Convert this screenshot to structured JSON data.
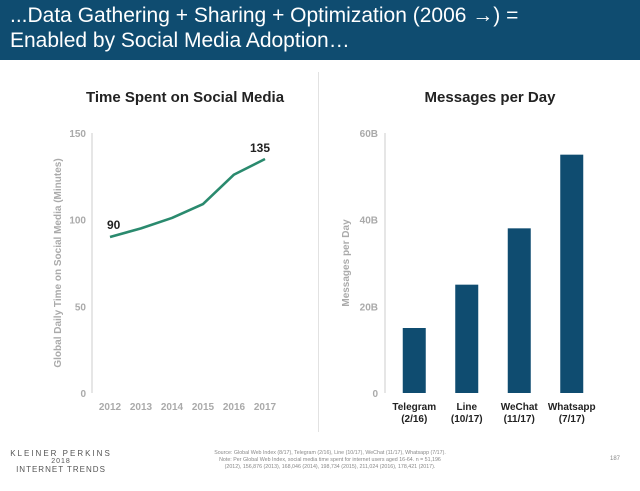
{
  "header": {
    "title_line1": "...Data Gathering + Sharing + Optimization (2006 →) =",
    "title_line2": "Enabled by Social Media Adoption…",
    "background": "#0f4c70"
  },
  "chart_data": [
    {
      "type": "line",
      "title": "Time Spent on Social Media",
      "ylabel": "Global Daily Time on Social Media (Minutes)",
      "xlabel": "",
      "x": [
        "2012",
        "2013",
        "2014",
        "2015",
        "2016",
        "2017"
      ],
      "series": [
        {
          "values": [
            90,
            95,
            101,
            109,
            126,
            135
          ],
          "color": "#2a8a6e"
        }
      ],
      "data_labels": [
        {
          "index": 0,
          "text": "90"
        },
        {
          "index": 5,
          "text": "135"
        }
      ],
      "yticks": [
        "0",
        "50",
        "100",
        "150"
      ],
      "ylim": [
        0,
        150
      ],
      "grid": false
    },
    {
      "type": "bar",
      "title": "Messages per Day",
      "ylabel": "Messages per Day",
      "xlabel": "",
      "categories": [
        {
          "name": "Telegram",
          "date": "(2/16)"
        },
        {
          "name": "Line",
          "date": "(10/17)"
        },
        {
          "name": "WeChat",
          "date": "(11/17)"
        },
        {
          "name": "Whatsapp",
          "date": "(7/17)"
        }
      ],
      "values": [
        15,
        25,
        38,
        55
      ],
      "units": "B",
      "yticks": [
        "0",
        "20B",
        "40B",
        "60B"
      ],
      "ylim": [
        0,
        60
      ],
      "bar_color": "#0f4c70",
      "grid": false
    }
  ],
  "footer": {
    "logo_line1": "KLEINER PERKINS",
    "logo_line2": "2018",
    "logo_line3": "INTERNET TRENDS",
    "source_line1": "Source: Global Web Index (8/17), Telegram (2/16), Line (10/17), WeChat (11/17), Whatsapp (7/17).",
    "source_line2": "Note: Per Global Web Index, social media time spent for internet users aged 16-64. n = 51,196",
    "source_line3": "(2012), 156,876 (2013), 168,046 (2014), 198,734 (2015), 211,024 (2016), 178,421 (2017).",
    "page_number": "187"
  }
}
